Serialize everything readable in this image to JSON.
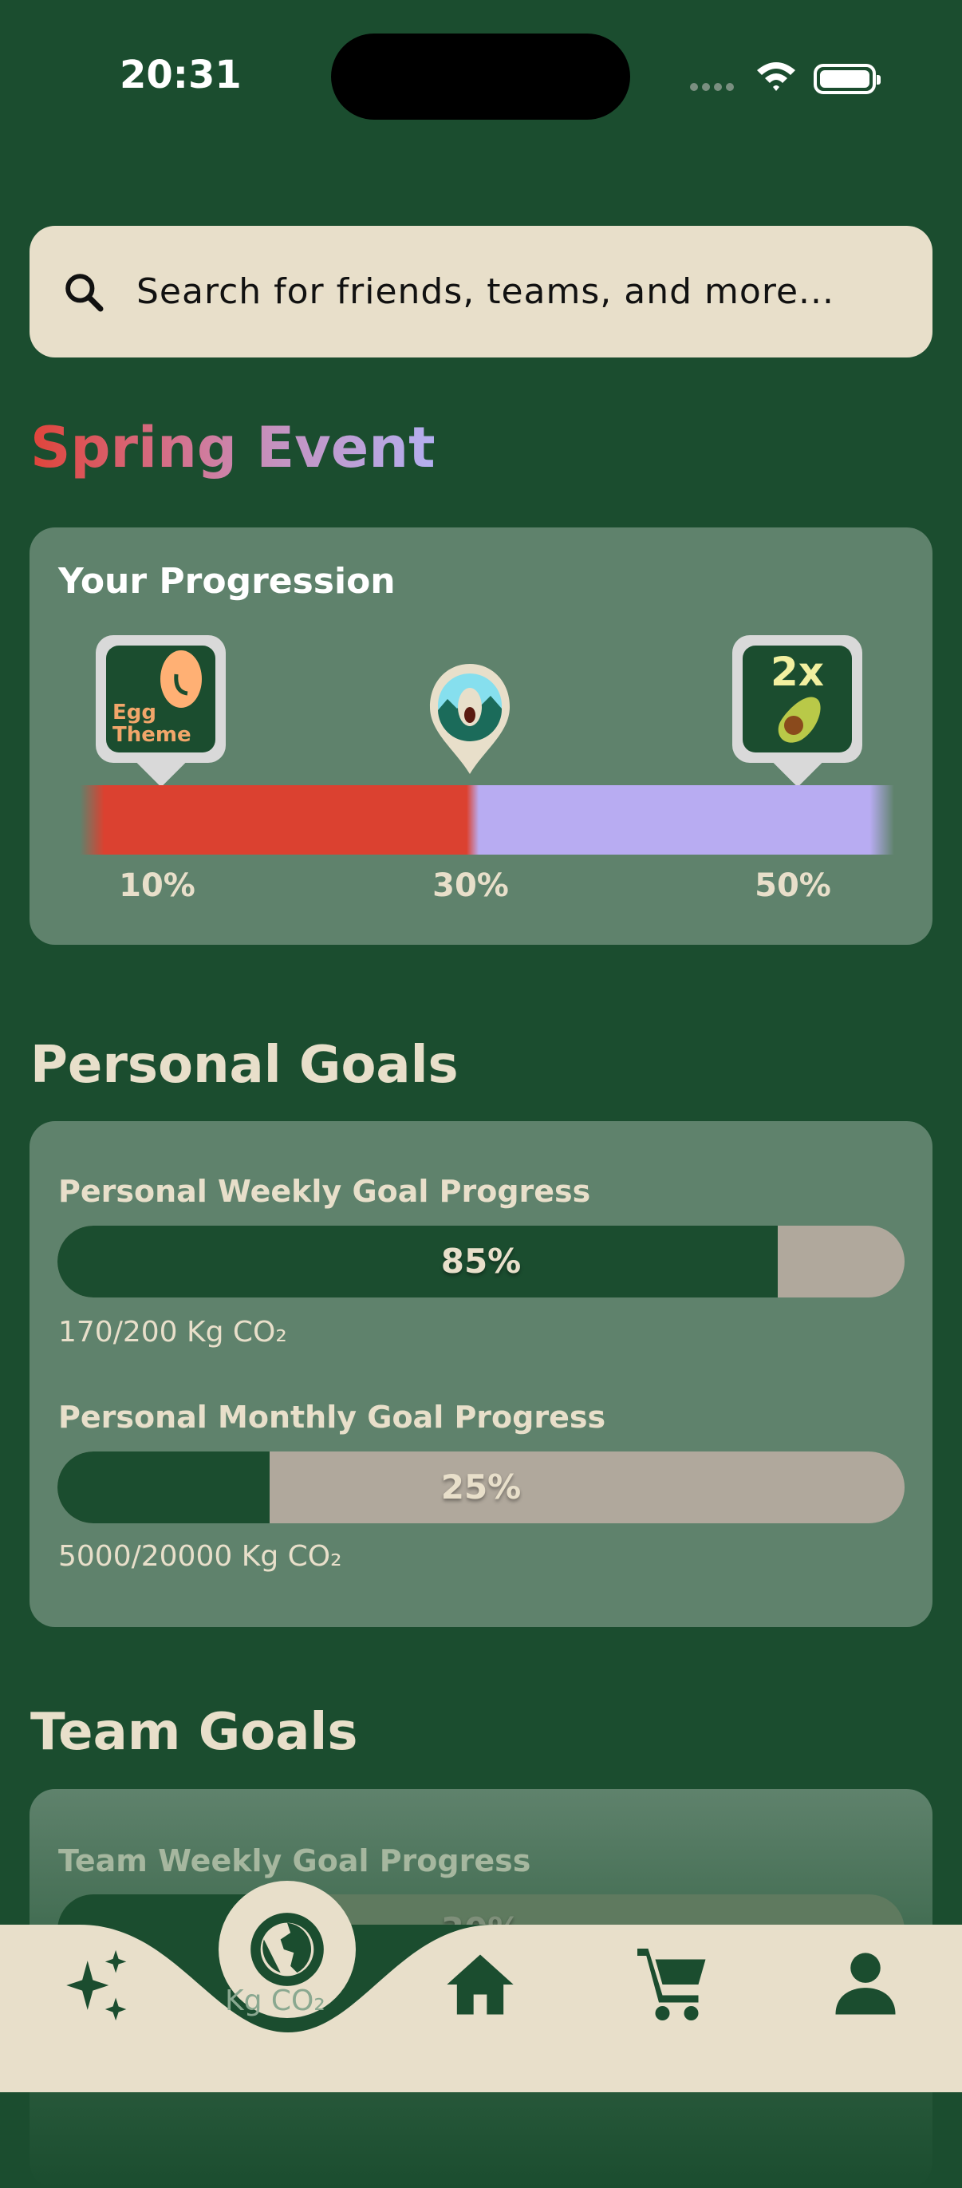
{
  "status_bar": {
    "time": "20:31"
  },
  "search": {
    "placeholder": "Search for friends, teams, and more...",
    "icon": "search-icon"
  },
  "event": {
    "title": "Spring Event"
  },
  "progression": {
    "title": "Your Progression",
    "progress_percent": 30,
    "colors": {
      "filled": "#db4130",
      "remaining": "#b8acf2"
    },
    "milestones": [
      {
        "label": "10%",
        "reward": "Egg Theme"
      },
      {
        "label": "30%",
        "reward": "avatar-pin"
      },
      {
        "label": "50%",
        "reward": "2x"
      }
    ]
  },
  "personal_goals": {
    "title": "Personal Goals",
    "goals": [
      {
        "label": "Personal Weekly Goal Progress",
        "percent_label": "85%",
        "fraction": 0.85,
        "amount": "170/200 Kg CO₂"
      },
      {
        "label": "Personal Monthly Goal Progress",
        "percent_label": "25%",
        "fraction": 0.25,
        "amount": "5000/20000 Kg CO₂"
      }
    ]
  },
  "team_goals": {
    "title": "Team Goals",
    "goals": [
      {
        "label": "Team Weekly Goal Progress",
        "percent_label": "30%",
        "amount": "Kg CO₂"
      }
    ]
  },
  "nav": {
    "items": [
      "sparkles-icon",
      "globe-icon",
      "home-icon",
      "cart-icon",
      "person-icon"
    ],
    "active": "globe-icon"
  }
}
